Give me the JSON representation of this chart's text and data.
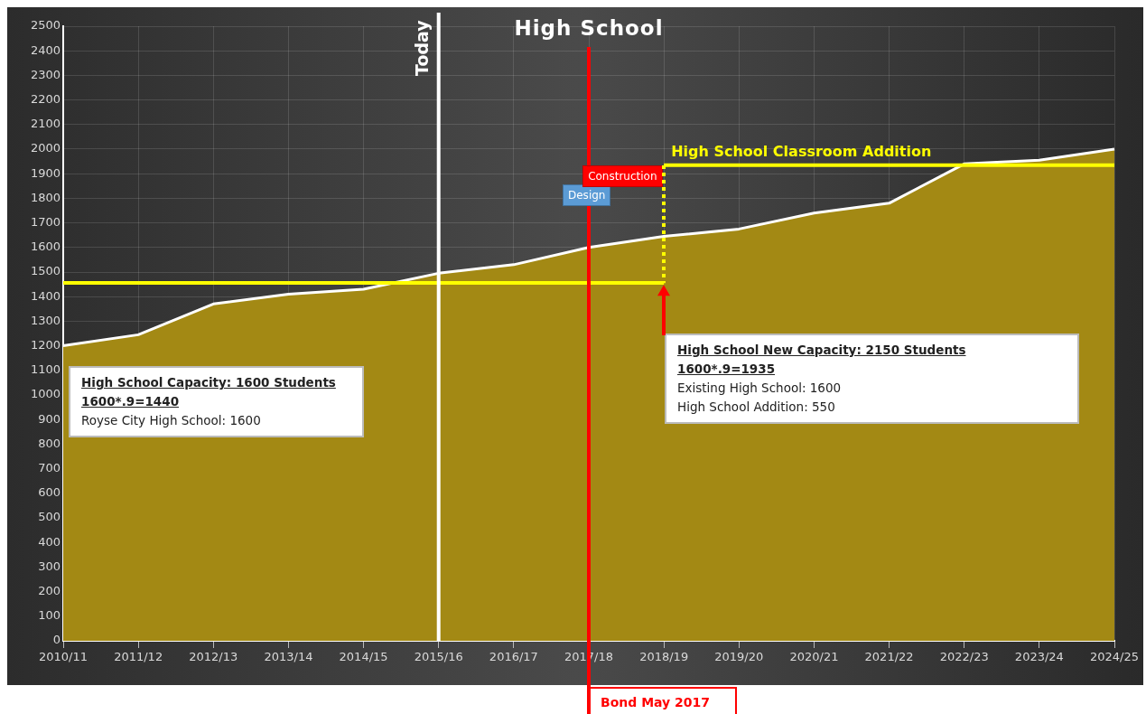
{
  "chart_data": {
    "type": "area",
    "title": "High School",
    "categories": [
      "2010/11",
      "2011/12",
      "2012/13",
      "2013/14",
      "2014/15",
      "2015/16",
      "2016/17",
      "2017/18",
      "2018/19",
      "2019/20",
      "2020/21",
      "2021/22",
      "2022/23",
      "2023/24",
      "2024/25"
    ],
    "series": [
      {
        "color": "#a38914",
        "values": [
          1200,
          1245,
          1370,
          1410,
          1430,
          1495,
          1530,
          1600,
          1645,
          1675,
          1740,
          1780,
          1940,
          1955,
          2000
        ]
      },
      {
        "type": "line",
        "color": "#ffff00",
        "values": [
          1456,
          1456,
          1456,
          1456,
          1456,
          1456,
          1456,
          1456,
          1456,
          null,
          null,
          null,
          null,
          null,
          null
        ]
      },
      {
        "type": "line",
        "name": "High School Classroom Addition",
        "color": "#ffff00",
        "values": [
          null,
          null,
          null,
          null,
          null,
          null,
          null,
          null,
          1935,
          1935,
          1935,
          1935,
          1935,
          1935,
          1935
        ]
      }
    ],
    "ylim": [
      0,
      2500
    ],
    "yticks": [
      0,
      100,
      200,
      300,
      400,
      500,
      600,
      700,
      800,
      900,
      1000,
      1100,
      1200,
      1300,
      1400,
      1500,
      1600,
      1700,
      1800,
      1900,
      2000,
      2100,
      2200,
      2300,
      2400,
      2500
    ],
    "grid": true,
    "ref_lines": [
      {
        "axis": "x",
        "value": "2015/16",
        "label": "Today",
        "color": "#ffffff"
      },
      {
        "axis": "x",
        "value": "2017/18",
        "label": "Bond May 2017",
        "color": "#ff0000"
      }
    ],
    "annotations": [
      "High School Capacity: 1600 Students",
      "1600*.9=1440",
      "Royse City High School: 1600",
      "High School New Capacity: 2150 Students",
      "1600*.9=1935",
      "Existing High School: 1600",
      "High School Addition: 550",
      "Design",
      {
        "text": "Construction",
        "x": "2018/19",
        "y": 1935
      }
    ]
  }
}
